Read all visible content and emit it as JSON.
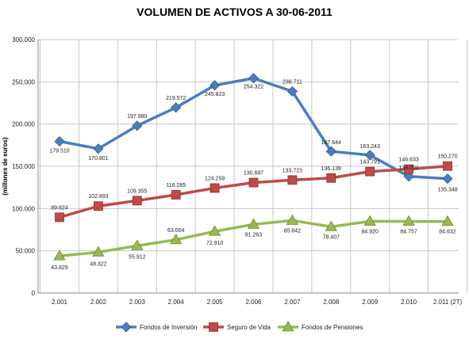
{
  "chart_data": {
    "type": "line",
    "title": "VOLUMEN DE ACTIVOS A 30-06-2011",
    "ylabel": "(millones de euros)",
    "xlabel": "",
    "ylim": [
      0,
      300000
    ],
    "yticks": [
      0,
      50000,
      100000,
      150000,
      200000,
      250000,
      300000
    ],
    "ytick_labels": [
      "0",
      "50.000",
      "100.000",
      "150.000",
      "200.000",
      "250.000",
      "300.000"
    ],
    "categories": [
      "2.001",
      "2.002",
      "2.003",
      "2.004",
      "2.005",
      "2.006",
      "2.007",
      "2.008",
      "2.009",
      "2.010",
      "2.011 (2T)"
    ],
    "grid": true,
    "legend_position": "bottom",
    "series": [
      {
        "name": "Fondos de Inversión",
        "color": "#4a7ebb",
        "marker": "diamond",
        "values": [
          179510,
          170801,
          197980,
          219572,
          245823,
          254322,
          238711,
          167644,
          163243,
          138001,
          135348
        ],
        "labels": [
          "179.510",
          "170.801",
          "197.980",
          "219.572",
          "245.823",
          "254.322",
          "238.711",
          "167.644",
          "163.243",
          "138.001",
          "135.348"
        ]
      },
      {
        "name": "Seguro de Vida",
        "color": "#be4b48",
        "marker": "square",
        "values": [
          89624,
          102893,
          109355,
          116285,
          124259,
          130697,
          133723,
          136139,
          143791,
          146633,
          150270
        ],
        "labels": [
          "89.624",
          "102.893",
          "109.355",
          "116.285",
          "124.259",
          "130.697",
          "133.723",
          "136.139",
          "143.791",
          "146.633",
          "150.270"
        ]
      },
      {
        "name": "Fondos de Pensiones",
        "color": "#98b954",
        "marker": "triangle",
        "values": [
          43829,
          48322,
          55912,
          63004,
          72910,
          81263,
          85842,
          78407,
          84920,
          84757,
          84632
        ],
        "labels": [
          "43.829",
          "48.322",
          "55.912",
          "63.004",
          "72.910",
          "81.263",
          "85.842",
          "78.407",
          "84.920",
          "84.757",
          "84.632"
        ]
      }
    ]
  }
}
